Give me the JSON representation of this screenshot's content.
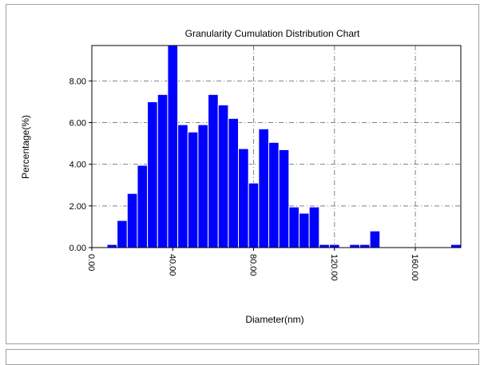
{
  "chart_data": {
    "type": "histogram",
    "title": "Granularity Cumulation Distribution  Chart",
    "x_label": "Diameter(nm)",
    "y_label": "Percentage(%)",
    "bins": [
      7.5,
      12.5,
      17.5,
      22.5,
      27.5,
      32.5,
      37.5,
      42.5,
      47.5,
      52.5,
      57.5,
      62.5,
      67.5,
      72.5,
      77.5,
      82.5,
      87.5,
      92.5,
      97.5,
      102.5,
      107.5,
      112.5,
      117.5,
      122.5,
      127.5,
      132.5,
      137.5,
      142.5,
      147.5,
      152.5,
      157.5,
      162.5,
      167.5,
      172.5,
      177.5,
      182.5
    ],
    "values": [
      0.15,
      1.3,
      2.6,
      3.95,
      7.0,
      7.35,
      9.7,
      5.9,
      5.55,
      5.9,
      7.35,
      6.85,
      6.2,
      4.75,
      3.1,
      5.7,
      5.05,
      4.7,
      1.95,
      1.65,
      1.95,
      0.15,
      0.15,
      0,
      0.15,
      0.15,
      0.8,
      0,
      0,
      0,
      0,
      0,
      0,
      0,
      0.15
    ],
    "color": "#0000ff",
    "xlim": [
      0,
      182.5
    ],
    "ylim": [
      0,
      9.7
    ],
    "xticks": [
      {
        "value": 0,
        "label": "0.00"
      },
      {
        "value": 40,
        "label": "40.00"
      },
      {
        "value": 80,
        "label": "80.00"
      },
      {
        "value": 120,
        "label": "120.00"
      },
      {
        "value": 160,
        "label": "160.00"
      }
    ],
    "yticks": [
      {
        "value": 0,
        "label": "0.00"
      },
      {
        "value": 2,
        "label": "2.00"
      },
      {
        "value": 4,
        "label": "4.00"
      },
      {
        "value": 6,
        "label": "6.00"
      },
      {
        "value": 8,
        "label": "8.00"
      }
    ],
    "grid": true
  }
}
